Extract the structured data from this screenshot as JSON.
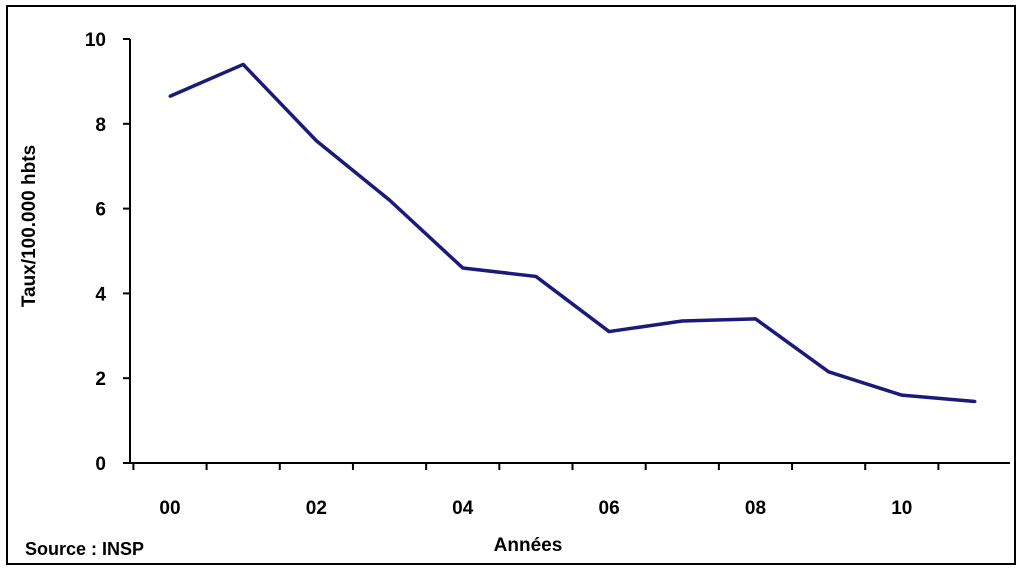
{
  "chart_data": {
    "type": "line",
    "x": [
      0,
      1,
      2,
      3,
      4,
      5,
      6,
      7,
      8,
      9,
      10,
      11
    ],
    "x_tick_labels": [
      "00",
      "02",
      "04",
      "06",
      "08",
      "10"
    ],
    "x_tick_values": [
      0,
      2,
      4,
      6,
      8,
      10
    ],
    "series": [
      {
        "values": [
          8.65,
          9.4,
          7.6,
          6.2,
          4.6,
          4.4,
          3.1,
          3.35,
          3.4,
          2.15,
          1.6,
          1.45
        ],
        "color": "#1a1a7a"
      }
    ],
    "xlabel": "Années",
    "ylabel": "Taux/100.000 hbts",
    "ylim": [
      0,
      10
    ],
    "y_ticks": [
      0,
      2,
      4,
      6,
      8,
      10
    ],
    "grid": false,
    "source": "Source : INSP"
  }
}
